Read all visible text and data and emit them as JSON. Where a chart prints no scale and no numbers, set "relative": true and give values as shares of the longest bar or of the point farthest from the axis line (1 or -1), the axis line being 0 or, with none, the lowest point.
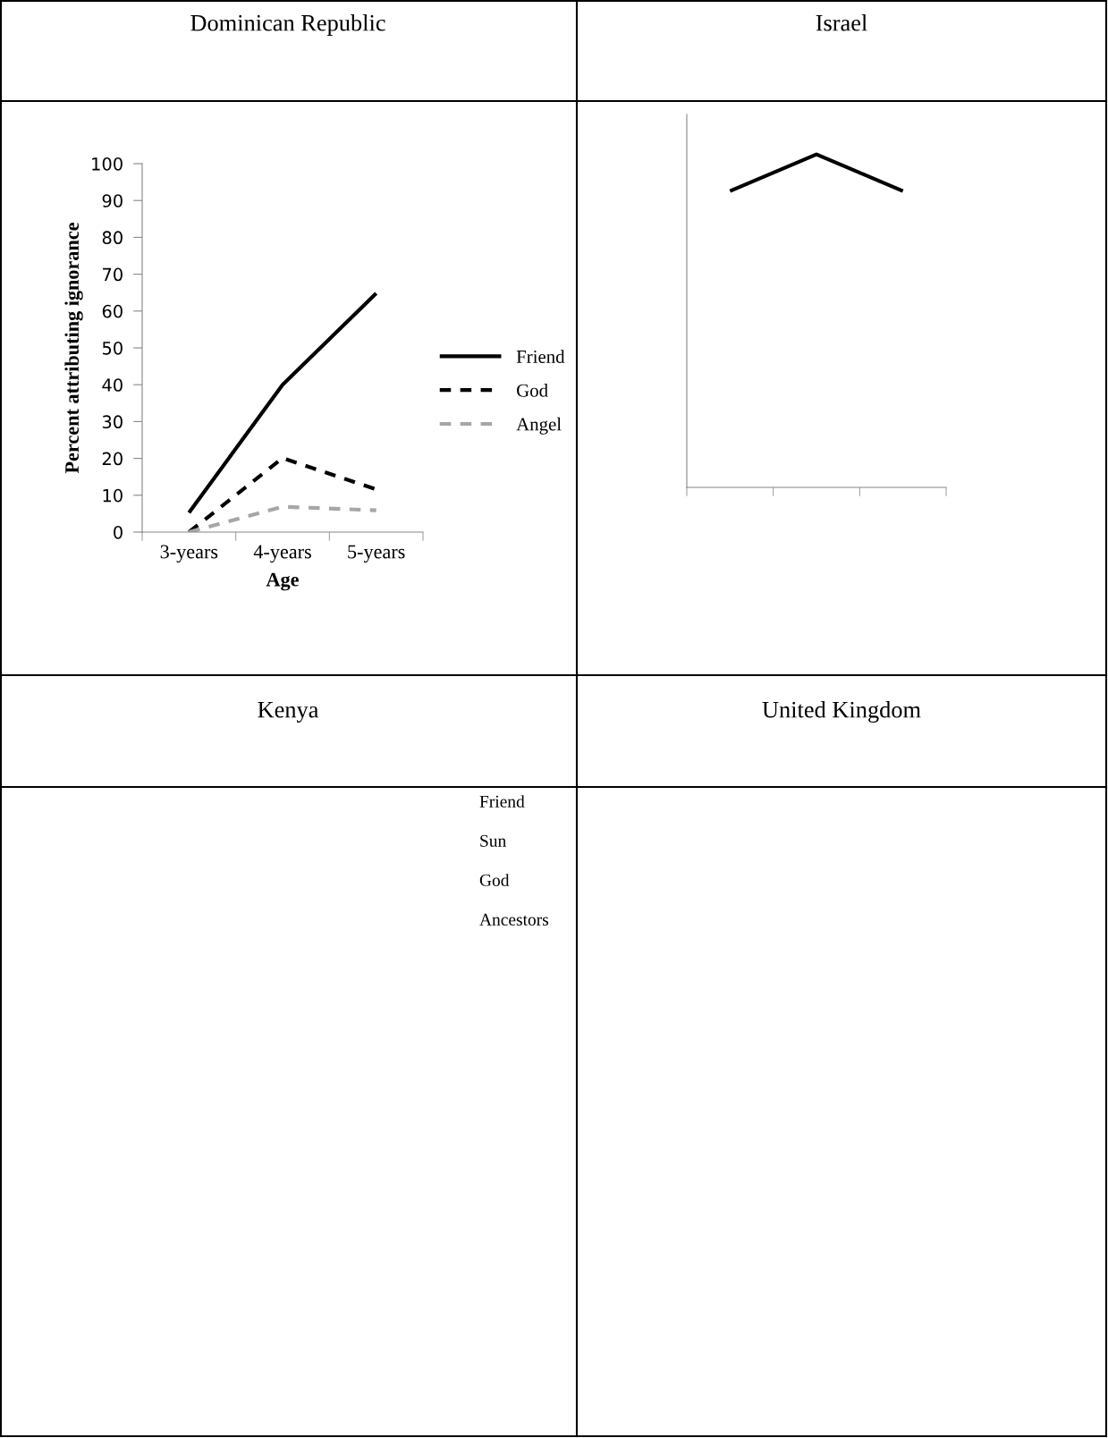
{
  "chart_data": [
    {
      "type": "line",
      "title": "Dominican Republic",
      "xlabel": "Age",
      "ylabel": "Percent attributing ignorance",
      "categories": [
        "3-years",
        "4-years",
        "5-years"
      ],
      "ylim": [
        0,
        100
      ],
      "yticks": [
        0,
        10,
        20,
        30,
        40,
        50,
        60,
        70,
        80,
        90,
        100
      ],
      "grid": false,
      "legend": "right",
      "marker": "none",
      "series": [
        {
          "name": "Friend",
          "color": "#000000",
          "line_style": "solid",
          "values": [
            5.3,
            40,
            64.8
          ]
        },
        {
          "name": "God",
          "color": "#000000",
          "line_style": "dashed",
          "values": [
            0,
            20.1,
            11.6
          ]
        },
        {
          "name": "Angel",
          "color": "#a6a6a6",
          "line_style": "dashed",
          "values": [
            0,
            6.9,
            5.9
          ]
        }
      ]
    },
    {
      "type": "line",
      "title": "Israel",
      "categories": [
        null,
        null,
        null
      ],
      "relative": true,
      "grid": false,
      "marker": "none",
      "series": [
        {
          "color": "#000000",
          "line_style": "solid",
          "values": [
            0.89,
            1,
            0.89
          ]
        }
      ]
    },
    {
      "type": "other",
      "title": "Kenya",
      "annotations": [
        "Friend",
        "Sun",
        "God",
        "Ancestors"
      ]
    },
    {
      "type": "other",
      "title": "United Kingdom"
    }
  ]
}
